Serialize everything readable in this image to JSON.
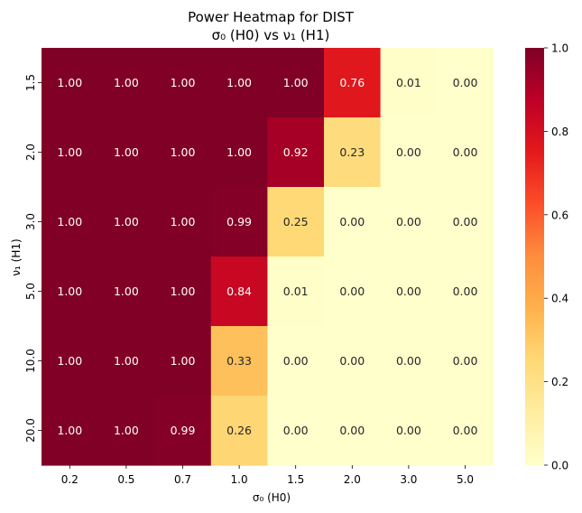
{
  "chart_data": {
    "type": "heatmap",
    "title": "Power Heatmap for DIST",
    "subtitle": "σ₀ (H0) vs ν₁ (H1)",
    "xlabel": "σ₀ (H0)",
    "ylabel": "ν₁ (H1)",
    "x_categories": [
      "0.2",
      "0.5",
      "0.7",
      "1.0",
      "1.5",
      "2.0",
      "3.0",
      "5.0"
    ],
    "y_categories": [
      "1.5",
      "2.0",
      "3.0",
      "5.0",
      "10.0",
      "20.0"
    ],
    "values": [
      [
        1.0,
        1.0,
        1.0,
        1.0,
        1.0,
        0.76,
        0.01,
        0.0
      ],
      [
        1.0,
        1.0,
        1.0,
        1.0,
        0.92,
        0.23,
        0.0,
        0.0
      ],
      [
        1.0,
        1.0,
        1.0,
        0.99,
        0.25,
        0.0,
        0.0,
        0.0
      ],
      [
        1.0,
        1.0,
        1.0,
        0.84,
        0.01,
        0.0,
        0.0,
        0.0
      ],
      [
        1.0,
        1.0,
        1.0,
        0.33,
        0.0,
        0.0,
        0.0,
        0.0
      ],
      [
        1.0,
        1.0,
        0.99,
        0.26,
        0.0,
        0.0,
        0.0,
        0.0
      ]
    ],
    "value_range": [
      0.0,
      1.0
    ],
    "colorbar_ticks": [
      "0.0",
      "0.2",
      "0.4",
      "0.6",
      "0.8",
      "1.0"
    ],
    "colormap": "YlOrRd",
    "colormap_stops": [
      "#ffffcc",
      "#ffeda0",
      "#fed976",
      "#feb24c",
      "#fd8d3c",
      "#fc4e2a",
      "#e31a1c",
      "#bd0026",
      "#800026"
    ],
    "annotation_dark_text_color": "#262626",
    "annotation_light_text_color": "#ffffff"
  }
}
